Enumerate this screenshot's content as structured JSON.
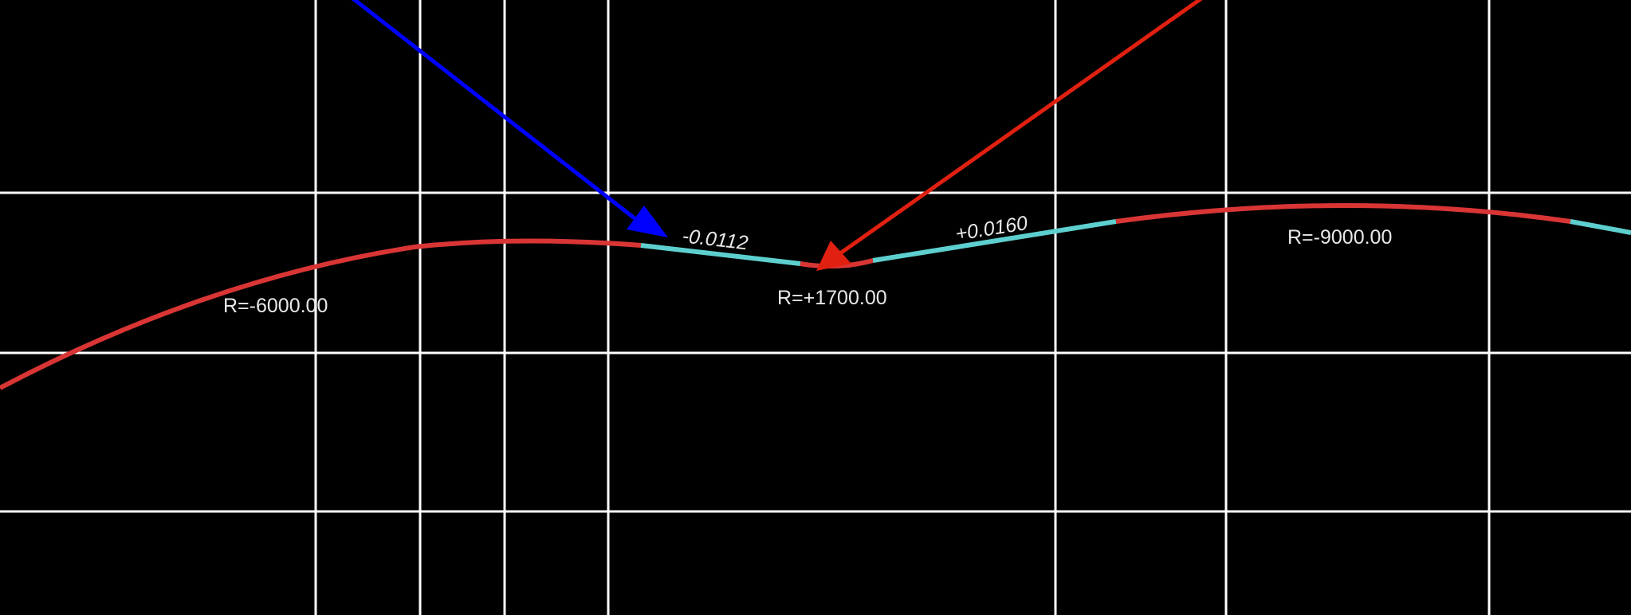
{
  "profile": {
    "curves": [
      {
        "id": "curve-1",
        "label": "R=-6000.00"
      },
      {
        "id": "curve-2",
        "label": "R=+1700.00"
      },
      {
        "id": "curve-3",
        "label": "R=-9000.00"
      }
    ],
    "grades": [
      {
        "id": "grade-1",
        "label": "-0.0112"
      },
      {
        "id": "grade-2",
        "label": "+0.0160"
      }
    ]
  },
  "colors": {
    "background": "#000000",
    "grid": "#ffffff",
    "curve_segment": "#d93535",
    "tangent_segment": "#5ecfcf",
    "label_text": "#e8e8e8",
    "blue_arrow": "#0000ff",
    "red_arrow": "#e02010"
  },
  "annotations": {
    "blue_arrow_icon": "arrow-pointing-to-tangent-start",
    "red_arrow_icon": "arrow-pointing-to-vertical-curve"
  }
}
